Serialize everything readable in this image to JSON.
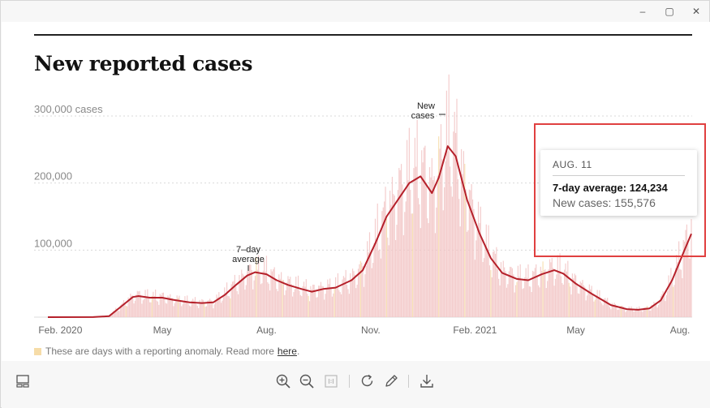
{
  "window": {
    "controls": {
      "minimize": "–",
      "maximize": "▢",
      "close": "✕"
    }
  },
  "page": {
    "title": "New reported cases",
    "legend": {
      "text": "These are days with a reporting anomaly. Read more",
      "link": "here",
      "period": "."
    }
  },
  "tooltip": {
    "date": "AUG. 11",
    "avg_label": "7-day average:",
    "avg_value": "124,234",
    "new_label": "New cases:",
    "new_value": "155,576"
  },
  "annotations": {
    "avg_line1": "7–day",
    "avg_line2": "average",
    "new_line1": "New",
    "new_line2": "cases"
  },
  "colors": {
    "line": "#b5202a",
    "bars": "#f2c4c4",
    "anomaly": "#f6dca8",
    "highlight_box": "#e04040"
  },
  "chart_data": {
    "type": "area",
    "ylabels": [
      "300,000 cases",
      "200,000",
      "100,000"
    ],
    "yticks": [
      300000,
      200000,
      100000
    ],
    "ylim": [
      0,
      300000
    ],
    "xlabels": [
      "Feb. 2020",
      "May",
      "Aug.",
      "Nov.",
      "Feb. 2021",
      "May",
      "Aug."
    ],
    "xtick_dates": [
      "2020-02-01",
      "2020-05-01",
      "2020-08-01",
      "2020-11-01",
      "2021-02-01",
      "2021-05-01",
      "2021-08-01"
    ],
    "xlim": [
      "2020-01-21",
      "2021-08-11"
    ],
    "series": [
      {
        "name": "7-day average",
        "points": [
          [
            "2020-01-21",
            0
          ],
          [
            "2020-03-01",
            100
          ],
          [
            "2020-03-15",
            1500
          ],
          [
            "2020-03-25",
            15000
          ],
          [
            "2020-04-05",
            30000
          ],
          [
            "2020-04-10",
            31500
          ],
          [
            "2020-04-20",
            29000
          ],
          [
            "2020-05-01",
            29000
          ],
          [
            "2020-05-10",
            26000
          ],
          [
            "2020-05-25",
            22000
          ],
          [
            "2020-06-05",
            21000
          ],
          [
            "2020-06-15",
            22000
          ],
          [
            "2020-06-25",
            33000
          ],
          [
            "2020-07-05",
            48000
          ],
          [
            "2020-07-15",
            62000
          ],
          [
            "2020-07-22",
            67000
          ],
          [
            "2020-08-01",
            64000
          ],
          [
            "2020-08-10",
            55000
          ],
          [
            "2020-08-20",
            48000
          ],
          [
            "2020-09-01",
            42000
          ],
          [
            "2020-09-10",
            38000
          ],
          [
            "2020-09-20",
            42000
          ],
          [
            "2020-10-01",
            44000
          ],
          [
            "2020-10-15",
            55000
          ],
          [
            "2020-10-25",
            70000
          ],
          [
            "2020-11-05",
            110000
          ],
          [
            "2020-11-15",
            150000
          ],
          [
            "2020-11-25",
            175000
          ],
          [
            "2020-12-05",
            200000
          ],
          [
            "2020-12-15",
            210000
          ],
          [
            "2020-12-25",
            185000
          ],
          [
            "2020-12-31",
            208000
          ],
          [
            "2021-01-08",
            255000
          ],
          [
            "2021-01-15",
            240000
          ],
          [
            "2021-01-25",
            175000
          ],
          [
            "2021-02-05",
            125000
          ],
          [
            "2021-02-15",
            88000
          ],
          [
            "2021-02-25",
            66000
          ],
          [
            "2021-03-10",
            57000
          ],
          [
            "2021-03-20",
            55000
          ],
          [
            "2021-04-01",
            64000
          ],
          [
            "2021-04-12",
            70000
          ],
          [
            "2021-04-20",
            65000
          ],
          [
            "2021-05-01",
            50000
          ],
          [
            "2021-05-15",
            35000
          ],
          [
            "2021-06-01",
            18000
          ],
          [
            "2021-06-15",
            12000
          ],
          [
            "2021-06-25",
            11000
          ],
          [
            "2021-07-05",
            13000
          ],
          [
            "2021-07-15",
            25000
          ],
          [
            "2021-07-25",
            55000
          ],
          [
            "2021-08-05",
            100000
          ],
          [
            "2021-08-11",
            124234
          ]
        ]
      }
    ]
  }
}
